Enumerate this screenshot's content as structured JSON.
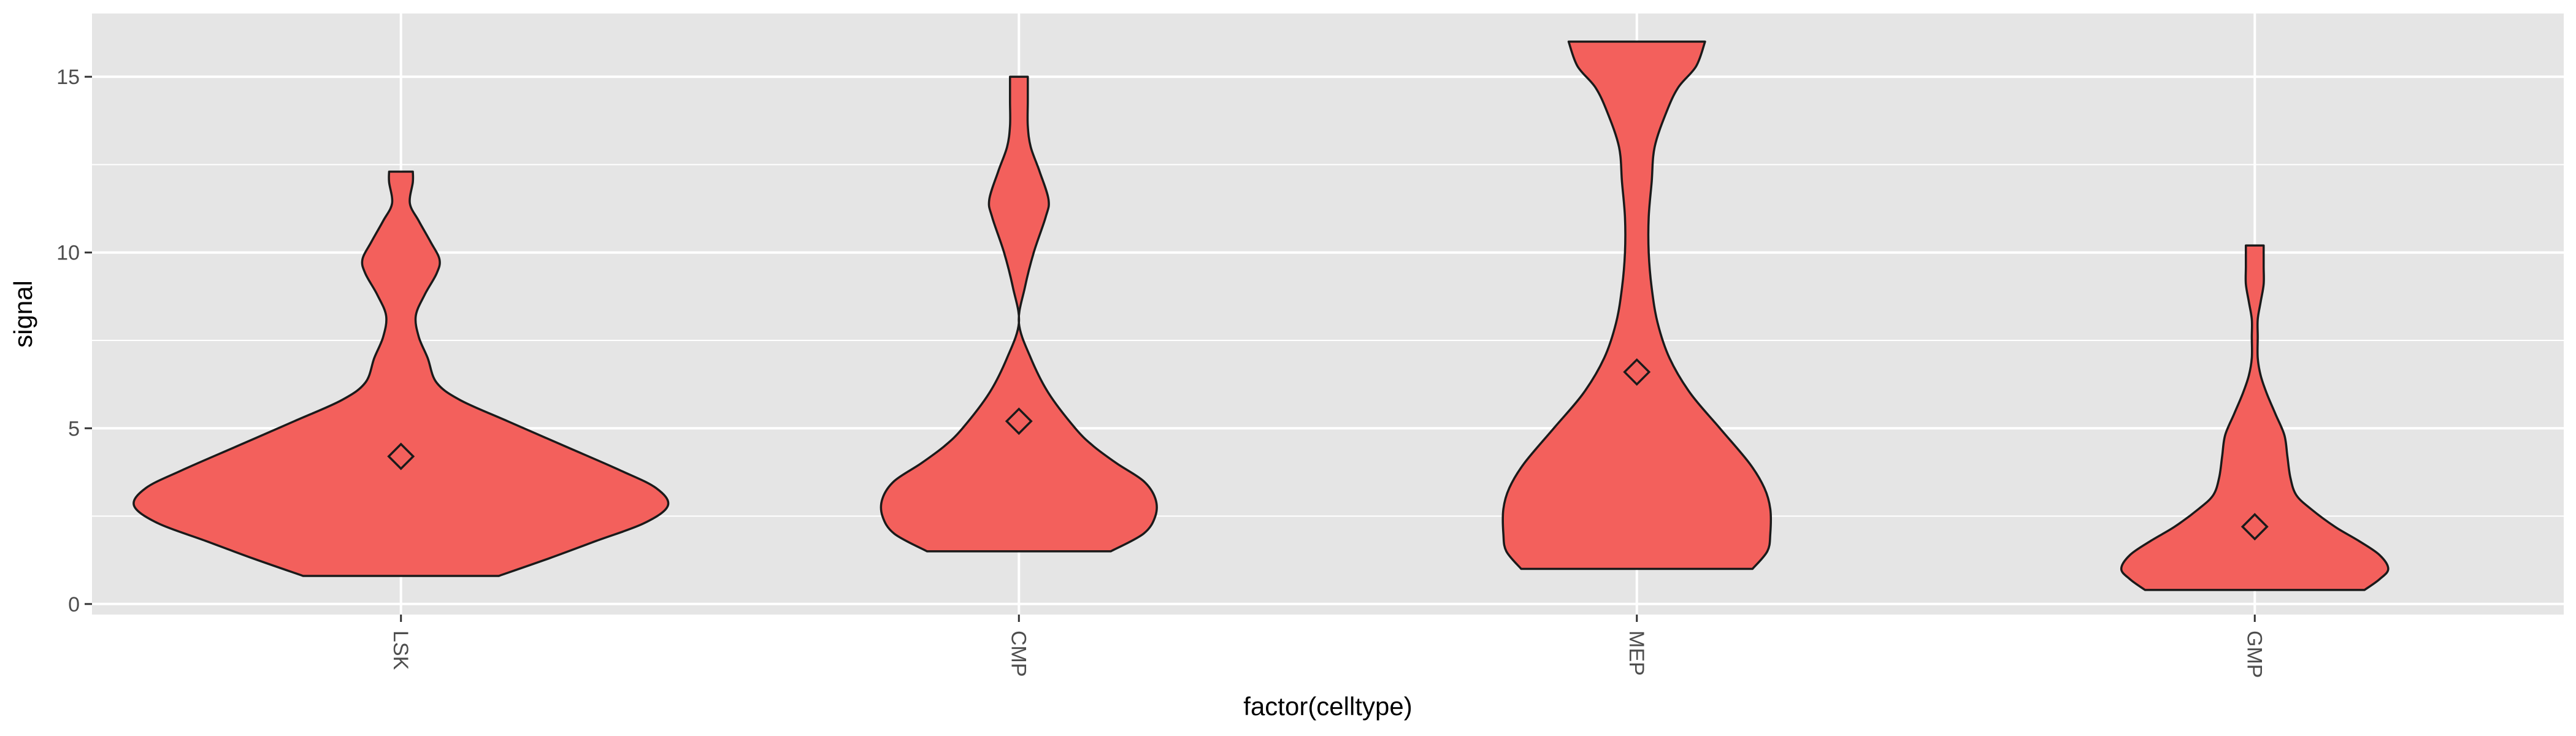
{
  "chart_data": {
    "type": "violin",
    "title": "",
    "xlabel": "factor(celltype)",
    "ylabel": "signal",
    "ylim": [
      -0.3,
      16.8
    ],
    "y_ticks": [
      0,
      5,
      10,
      15
    ],
    "y_tick_labels": [
      "0",
      "5",
      "10",
      "15"
    ],
    "categories": [
      "LSK",
      "CMP",
      "MEP",
      "GMP"
    ],
    "x_tick_label_rotation": "vertical (rotated 90° clockwise)",
    "grid": true,
    "legend": "none",
    "colors": {
      "panel_background": "#e5e5e5",
      "grid_line": "#ffffff",
      "violin_fill": "#f3605c",
      "violin_outline": "#1a1a1a",
      "mean_marker": "#1a1a1a"
    },
    "mean_marker_shape": "diamond (open)",
    "violins": [
      {
        "category": "LSK",
        "min": 0.8,
        "max": 12.3,
        "mean": 4.2,
        "profile": [
          [
            0.8,
            0.33
          ],
          [
            1.3,
            0.5
          ],
          [
            1.8,
            0.66
          ],
          [
            2.3,
            0.82
          ],
          [
            2.8,
            0.9
          ],
          [
            3.3,
            0.86
          ],
          [
            3.8,
            0.74
          ],
          [
            4.5,
            0.55
          ],
          [
            5.2,
            0.36
          ],
          [
            5.8,
            0.2
          ],
          [
            6.3,
            0.12
          ],
          [
            7.0,
            0.09
          ],
          [
            7.6,
            0.06
          ],
          [
            8.2,
            0.05
          ],
          [
            8.8,
            0.08
          ],
          [
            9.4,
            0.12
          ],
          [
            9.8,
            0.13
          ],
          [
            10.3,
            0.1
          ],
          [
            10.9,
            0.06
          ],
          [
            11.4,
            0.03
          ],
          [
            12.0,
            0.04
          ],
          [
            12.3,
            0.04
          ]
        ]
      },
      {
        "category": "CMP",
        "min": 1.5,
        "max": 15.0,
        "mean": 5.2,
        "profile": [
          [
            1.5,
            0.31
          ],
          [
            2.0,
            0.42
          ],
          [
            2.5,
            0.46
          ],
          [
            3.0,
            0.46
          ],
          [
            3.5,
            0.42
          ],
          [
            4.0,
            0.33
          ],
          [
            4.5,
            0.25
          ],
          [
            5.0,
            0.19
          ],
          [
            6.0,
            0.1
          ],
          [
            7.0,
            0.04
          ],
          [
            8.0,
            0.0
          ],
          [
            9.0,
            0.02
          ],
          [
            10.0,
            0.05
          ],
          [
            11.0,
            0.09
          ],
          [
            11.5,
            0.1
          ],
          [
            12.3,
            0.07
          ],
          [
            13.0,
            0.04
          ],
          [
            13.6,
            0.03
          ],
          [
            14.3,
            0.03
          ],
          [
            15.0,
            0.03
          ]
        ]
      },
      {
        "category": "MEP",
        "min": 1.0,
        "max": 16.0,
        "mean": 6.6,
        "profile": [
          [
            1.0,
            0.39
          ],
          [
            1.5,
            0.44
          ],
          [
            2.0,
            0.45
          ],
          [
            2.7,
            0.45
          ],
          [
            3.3,
            0.43
          ],
          [
            4.0,
            0.38
          ],
          [
            5.0,
            0.28
          ],
          [
            6.0,
            0.18
          ],
          [
            7.0,
            0.11
          ],
          [
            8.0,
            0.07
          ],
          [
            9.0,
            0.05
          ],
          [
            10.0,
            0.04
          ],
          [
            11.0,
            0.04
          ],
          [
            12.0,
            0.05
          ],
          [
            13.0,
            0.06
          ],
          [
            14.0,
            0.1
          ],
          [
            14.7,
            0.14
          ],
          [
            15.3,
            0.2
          ],
          [
            16.0,
            0.23
          ]
        ]
      },
      {
        "category": "GMP",
        "min": 0.4,
        "max": 10.2,
        "mean": 2.2,
        "profile": [
          [
            0.4,
            0.37
          ],
          [
            0.7,
            0.42
          ],
          [
            1.0,
            0.45
          ],
          [
            1.4,
            0.42
          ],
          [
            1.8,
            0.35
          ],
          [
            2.2,
            0.27
          ],
          [
            2.7,
            0.19
          ],
          [
            3.1,
            0.14
          ],
          [
            3.6,
            0.12
          ],
          [
            4.2,
            0.11
          ],
          [
            4.8,
            0.1
          ],
          [
            5.4,
            0.07
          ],
          [
            6.0,
            0.04
          ],
          [
            6.5,
            0.02
          ],
          [
            7.0,
            0.01
          ],
          [
            7.6,
            0.01
          ],
          [
            8.1,
            0.01
          ],
          [
            8.6,
            0.02
          ],
          [
            9.1,
            0.03
          ],
          [
            9.6,
            0.03
          ],
          [
            10.2,
            0.03
          ]
        ]
      }
    ]
  }
}
